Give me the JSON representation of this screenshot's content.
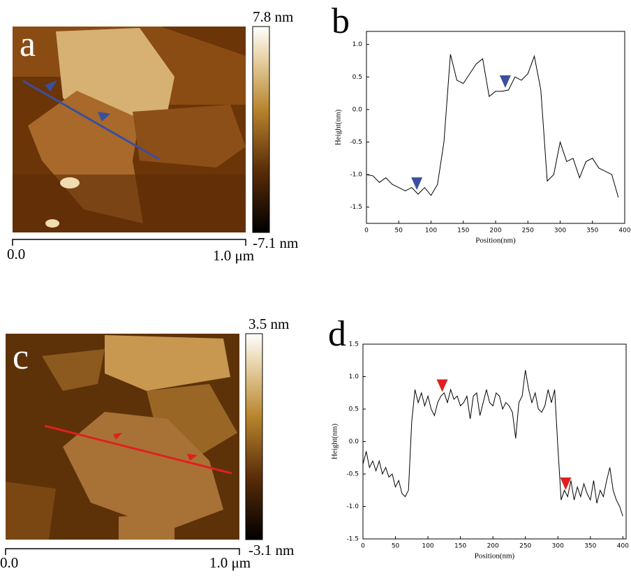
{
  "images": [
    {
      "label": "a",
      "colorbar_max": "7.8 nm",
      "colorbar_min": "-7.1 nm",
      "scale_start": "0.0",
      "scale_end": "1.0 μm"
    },
    {
      "label": "c",
      "colorbar_max": "3.5 nm",
      "colorbar_min": "-3.1 nm",
      "scale_start": "0.0",
      "scale_end": "1.0 μm"
    }
  ],
  "chart_data": [
    {
      "type": "line",
      "panel": "b",
      "x_label": "Position(nm)",
      "y_label": "Height(nm)",
      "color": "#000000",
      "x": [
        0,
        10,
        20,
        30,
        40,
        50,
        60,
        70,
        80,
        90,
        100,
        110,
        120,
        130,
        140,
        150,
        160,
        170,
        180,
        190,
        200,
        210,
        220,
        230,
        240,
        250,
        260,
        270,
        280,
        290,
        300,
        310,
        320,
        330,
        340,
        350,
        360,
        370,
        380,
        390
      ],
      "values": [
        -1.0,
        -1.02,
        -1.12,
        -1.05,
        -1.15,
        -1.2,
        -1.25,
        -1.2,
        -1.3,
        -1.2,
        -1.32,
        -1.15,
        -0.5,
        0.85,
        0.45,
        0.4,
        0.55,
        0.7,
        0.78,
        0.2,
        0.28,
        0.28,
        0.3,
        0.5,
        0.45,
        0.55,
        0.82,
        0.3,
        -1.1,
        -1.0,
        -0.5,
        -0.8,
        -0.75,
        -1.05,
        -0.8,
        -0.75,
        -0.9,
        -0.95,
        -1.0,
        -1.35
      ],
      "xlim": [
        0,
        400
      ],
      "ylim": [
        -1.75,
        1.2
      ],
      "xticks": [
        0,
        50,
        100,
        150,
        200,
        250,
        300,
        350,
        400
      ],
      "yticks": [
        {
          "value": -1.5,
          "label": "-1.5"
        },
        {
          "value": -1,
          "label": "-1.0"
        },
        -0.5,
        {
          "value": 0,
          "label": "0.0"
        },
        0.5,
        {
          "value": 1,
          "label": "1.0"
        }
      ],
      "marker_x": [
        78,
        215
      ],
      "marker_color": "#3a4fa0"
    },
    {
      "type": "line",
      "panel": "d",
      "x_label": "Position(nm)",
      "y_label": "Height(nm)",
      "color": "#000000",
      "x": [
        0,
        5,
        10,
        15,
        20,
        25,
        30,
        35,
        40,
        45,
        50,
        55,
        60,
        65,
        70,
        75,
        80,
        85,
        90,
        95,
        100,
        105,
        110,
        115,
        120,
        125,
        130,
        135,
        140,
        145,
        150,
        155,
        160,
        165,
        170,
        175,
        180,
        185,
        190,
        195,
        200,
        205,
        210,
        215,
        220,
        225,
        230,
        235,
        240,
        245,
        250,
        255,
        260,
        265,
        270,
        275,
        280,
        285,
        290,
        295,
        300,
        305,
        310,
        315,
        320,
        325,
        330,
        335,
        340,
        345,
        350,
        355,
        360,
        365,
        370,
        375,
        380,
        385,
        390,
        395,
        400
      ],
      "values": [
        -0.35,
        -0.15,
        -0.4,
        -0.3,
        -0.45,
        -0.3,
        -0.5,
        -0.4,
        -0.55,
        -0.5,
        -0.7,
        -0.6,
        -0.8,
        -0.85,
        -0.75,
        0.3,
        0.8,
        0.6,
        0.75,
        0.55,
        0.7,
        0.5,
        0.4,
        0.6,
        0.7,
        0.75,
        0.6,
        0.8,
        0.65,
        0.7,
        0.55,
        0.6,
        0.7,
        0.35,
        0.7,
        0.75,
        0.4,
        0.6,
        0.8,
        0.6,
        0.55,
        0.75,
        0.7,
        0.5,
        0.6,
        0.55,
        0.45,
        0.05,
        0.6,
        0.7,
        1.1,
        0.8,
        0.6,
        0.75,
        0.5,
        0.45,
        0.55,
        0.8,
        0.6,
        0.8,
        -0.1,
        -0.9,
        -0.75,
        -0.85,
        -0.6,
        -0.9,
        -0.7,
        -0.85,
        -0.65,
        -0.8,
        -0.9,
        -0.6,
        -0.95,
        -0.75,
        -0.85,
        -0.6,
        -0.4,
        -0.75,
        -0.9,
        -1.0,
        -1.15
      ],
      "xlim": [
        0,
        405
      ],
      "ylim": [
        -1.5,
        1.5
      ],
      "xticks": [
        0,
        50,
        100,
        150,
        200,
        250,
        300,
        350,
        400
      ],
      "yticks": [
        {
          "value": -1.5,
          "label": "-1.5"
        },
        {
          "value": -1,
          "label": "-1.0"
        },
        -0.5,
        {
          "value": 0,
          "label": "0.0"
        },
        0.5,
        {
          "value": 1,
          "label": "1.0"
        },
        1.5
      ],
      "marker_x": [
        122,
        312
      ],
      "marker_color": "#e02020"
    }
  ]
}
